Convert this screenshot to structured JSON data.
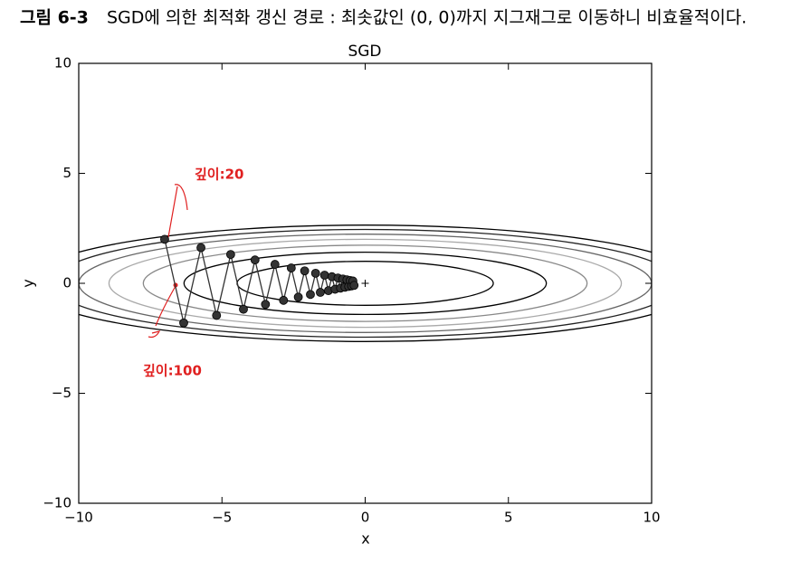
{
  "figure_label": "그림 6-3",
  "caption": "SGD에 의한 최적화 갱신 경로 : 최솟값인 (0, 0)까지 지그재그로 이동하니 비효율적이다.",
  "chart_data": {
    "type": "line",
    "title": "SGD",
    "x_label": "x",
    "y_label": "y",
    "xlim": [
      -10,
      10
    ],
    "ylim": [
      -10,
      10
    ],
    "xticks": [
      {
        "value": -10,
        "label": "−10"
      },
      {
        "value": -5,
        "label": "−5"
      },
      0,
      5,
      10
    ],
    "yticks": [
      {
        "value": -10,
        "label": "−10"
      },
      {
        "value": -5,
        "label": "−5"
      },
      0,
      5,
      10
    ],
    "contour_levels": [
      1,
      2,
      3,
      4,
      5,
      6,
      7
    ],
    "contour_colors": [
      "#000000",
      "#000000",
      "#888888",
      "#aaaaaa",
      "#666666",
      "#222222",
      "#000000"
    ],
    "optimum": {
      "x": 0,
      "y": 0
    },
    "series": [
      {
        "name": "SGD",
        "color": "#333333",
        "x": [
          -7,
          -6.335,
          -5.733,
          -5.189,
          -4.696,
          -4.25,
          -3.846,
          -3.481,
          -3.15,
          -2.851,
          -2.58,
          -2.335,
          -2.113,
          -1.912,
          -1.731,
          -1.566,
          -1.417,
          -1.283,
          -1.161,
          -1.051,
          -0.951,
          -0.86,
          -0.779,
          -0.705,
          -0.638,
          -0.577,
          -0.522,
          -0.473,
          -0.428,
          -0.387
        ],
        "values": [
          2,
          -1.8,
          1.62,
          -1.458,
          1.312,
          -1.181,
          1.063,
          -0.957,
          0.861,
          -0.775,
          0.697,
          -0.628,
          0.565,
          -0.508,
          0.458,
          -0.412,
          0.371,
          -0.334,
          0.3,
          -0.27,
          0.243,
          -0.219,
          0.197,
          -0.177,
          0.16,
          -0.144,
          0.129,
          -0.116,
          0.105,
          -0.094
        ]
      }
    ],
    "annotations": [
      "깊이:20",
      "깊이:100"
    ]
  }
}
